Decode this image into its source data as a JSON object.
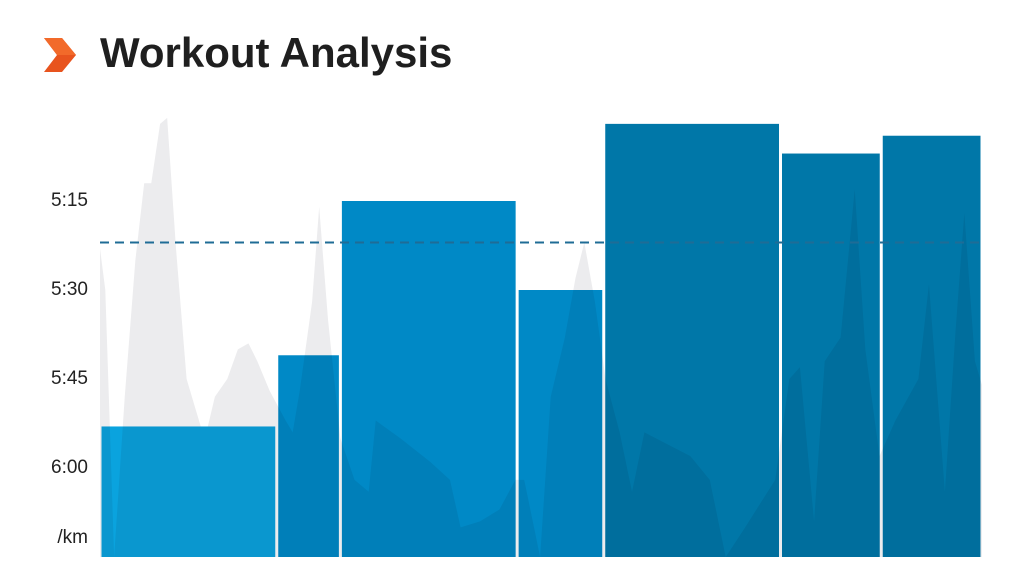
{
  "chart_data": {
    "type": "bar",
    "title": "Workout Analysis",
    "y_label": "/km",
    "ylim": [
      375,
      300
    ],
    "xlim": [
      0,
      4.99
    ],
    "yticks": [
      {
        "value": 315,
        "label": "5:15"
      },
      {
        "value": 330,
        "label": "5:30"
      },
      {
        "value": 345,
        "label": "5:45"
      },
      {
        "value": 360,
        "label": "6:00"
      }
    ],
    "distances": [
      1,
      0.36,
      1,
      0.49,
      1,
      0.57,
      0.57
    ],
    "values": [
      353,
      341,
      315,
      330,
      302,
      307,
      304
    ],
    "colors": [
      "#0aa3de",
      "#0089c6",
      "#0089c6",
      "#0089c6",
      "#0077a8",
      "#0077a8",
      "#0077a8"
    ],
    "average": 322,
    "average_color": "#1f6c96",
    "profile": {
      "color": "#ececee",
      "km": [
        0,
        0.03,
        0.08,
        0.14,
        0.2,
        0.25,
        0.29,
        0.34,
        0.38,
        0.43,
        0.49,
        0.57,
        0.61,
        0.65,
        0.72,
        0.78,
        0.84,
        0.89,
        0.96,
        1.05,
        1.09,
        1.13,
        1.2,
        1.24,
        1.29,
        1.36,
        1.44,
        1.52,
        1.56,
        1.7,
        1.87,
        1.98,
        2.04,
        2.15,
        2.26,
        2.35,
        2.4,
        2.49,
        2.55,
        2.63,
        2.69,
        2.74,
        2.8,
        2.86,
        2.94,
        3.01,
        3.08,
        3.34,
        3.45,
        3.54,
        3.65,
        3.82,
        3.9,
        3.96,
        4.04,
        4.1,
        4.19,
        4.27,
        4.33,
        4.41,
        4.5,
        4.63,
        4.69,
        4.78,
        4.84,
        4.89,
        4.95,
        4.99
      ],
      "pace": [
        323,
        330,
        375,
        348,
        325,
        312,
        312,
        302,
        301,
        323,
        345,
        353,
        353,
        348,
        345,
        340,
        339,
        342,
        347,
        352,
        354,
        347,
        332,
        316,
        335,
        355,
        362,
        364,
        352,
        355,
        359,
        362,
        370,
        369,
        367,
        362,
        362,
        375,
        348,
        338,
        328,
        322,
        332,
        345,
        354,
        364,
        354,
        358,
        362,
        375,
        370,
        362,
        345,
        343,
        369,
        342,
        338,
        313,
        340,
        358,
        352,
        345,
        329,
        364,
        337,
        317,
        342,
        346
      ]
    }
  }
}
